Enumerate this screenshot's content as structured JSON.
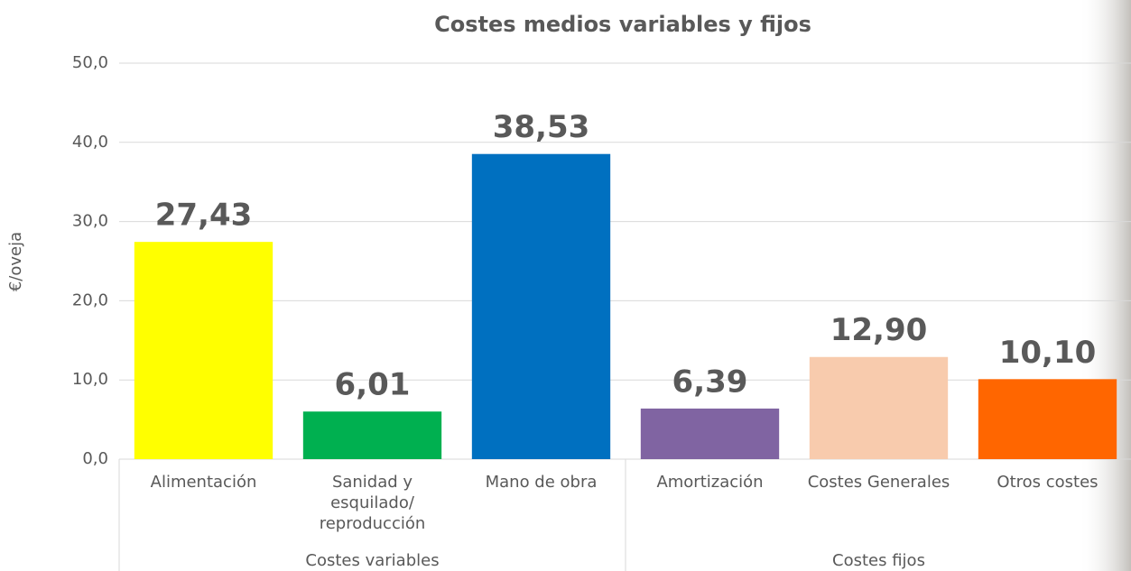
{
  "chart_data": {
    "type": "bar",
    "title": "Costes  medios variables y fijos",
    "y_axis_label": "€/oveja",
    "categories": [
      "Alimentación",
      "Sanidad y esquilado/ reproducción",
      "Mano de obra",
      "Amortización",
      "Costes Generales",
      "Otros costes"
    ],
    "groups": [
      {
        "name": "Costes variables",
        "size": 3
      },
      {
        "name": "Costes fijos",
        "size": 3
      }
    ],
    "values": [
      27.43,
      6.01,
      38.53,
      6.39,
      12.9,
      10.1
    ],
    "value_labels": [
      "27,43",
      "6,01",
      "38,53",
      "6,39",
      "12,90",
      "10,10"
    ],
    "colors": [
      "#ffff00",
      "#00b050",
      "#0070c0",
      "#8064a2",
      "#f8cbad",
      "#ff6600"
    ],
    "ylim": [
      0,
      50
    ],
    "yticks": [
      {
        "value": 0,
        "label": "0,0"
      },
      {
        "value": 10,
        "label": "10,0"
      },
      {
        "value": 20,
        "label": "20,0"
      },
      {
        "value": 30,
        "label": "30,0"
      },
      {
        "value": 40,
        "label": "40,0"
      },
      {
        "value": 50,
        "label": "50,0"
      }
    ],
    "grid": true
  }
}
